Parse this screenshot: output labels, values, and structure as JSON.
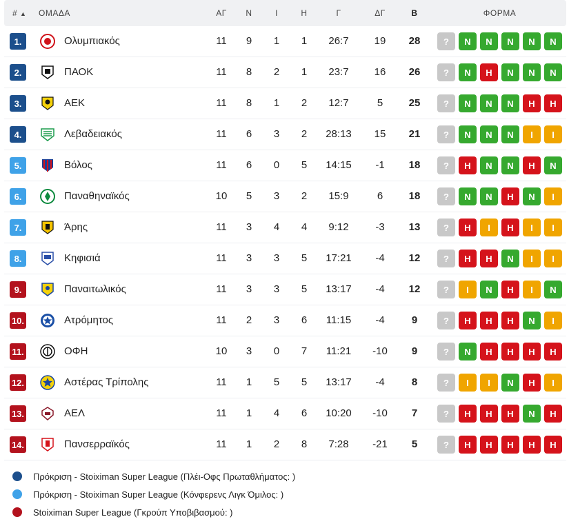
{
  "header": {
    "rank": "#",
    "sort_arrow": "▲",
    "team": "ΟΜΑΔΑ",
    "played": "ΑΓ",
    "wins": "Ν",
    "draws": "Ι",
    "losses": "Η",
    "goals": "Γ",
    "goal_diff": "ΔΓ",
    "points": "Β",
    "form": "ΦΟΡΜΑ"
  },
  "colors": {
    "champ": "#1c4f8c",
    "conf": "#3fa2e8",
    "releg": "#b3121d",
    "N": "#36a92f",
    "I": "#f0a500",
    "H": "#d5131b",
    "unknown": "#c8c8c8"
  },
  "rows": [
    {
      "rank": "1.",
      "zone": "champ",
      "team": "Ολυμπιακός",
      "logo": "olympiacos-logo-icon",
      "p": "11",
      "w": "9",
      "d": "1",
      "l": "1",
      "g": "26:7",
      "gd": "19",
      "pts": "28",
      "form": [
        "?",
        "Ν",
        "Ν",
        "Ν",
        "Ν",
        "Ν"
      ]
    },
    {
      "rank": "2.",
      "zone": "champ",
      "team": "ΠΑΟΚ",
      "logo": "paok-logo-icon",
      "p": "11",
      "w": "8",
      "d": "2",
      "l": "1",
      "g": "23:7",
      "gd": "16",
      "pts": "26",
      "form": [
        "?",
        "Ν",
        "Η",
        "Ν",
        "Ν",
        "Ν"
      ]
    },
    {
      "rank": "3.",
      "zone": "champ",
      "team": "ΑΕΚ",
      "logo": "aek-logo-icon",
      "p": "11",
      "w": "8",
      "d": "1",
      "l": "2",
      "g": "12:7",
      "gd": "5",
      "pts": "25",
      "form": [
        "?",
        "Ν",
        "Ν",
        "Ν",
        "Η",
        "Η"
      ]
    },
    {
      "rank": "4.",
      "zone": "champ",
      "team": "Λεβαδειακός",
      "logo": "levadiakos-logo-icon",
      "p": "11",
      "w": "6",
      "d": "3",
      "l": "2",
      "g": "28:13",
      "gd": "15",
      "pts": "21",
      "form": [
        "?",
        "Ν",
        "Ν",
        "Ν",
        "Ι",
        "Ι"
      ]
    },
    {
      "rank": "5.",
      "zone": "conf",
      "team": "Βόλος",
      "logo": "volos-logo-icon",
      "p": "11",
      "w": "6",
      "d": "0",
      "l": "5",
      "g": "14:15",
      "gd": "-1",
      "pts": "18",
      "form": [
        "?",
        "Η",
        "Ν",
        "Ν",
        "Η",
        "Ν"
      ]
    },
    {
      "rank": "6.",
      "zone": "conf",
      "team": "Παναθηναϊκός",
      "logo": "panathinaikos-logo-icon",
      "p": "10",
      "w": "5",
      "d": "3",
      "l": "2",
      "g": "15:9",
      "gd": "6",
      "pts": "18",
      "form": [
        "?",
        "Ν",
        "Ν",
        "Η",
        "Ν",
        "Ι"
      ]
    },
    {
      "rank": "7.",
      "zone": "conf",
      "team": "Άρης",
      "logo": "aris-logo-icon",
      "p": "11",
      "w": "3",
      "d": "4",
      "l": "4",
      "g": "9:12",
      "gd": "-3",
      "pts": "13",
      "form": [
        "?",
        "Η",
        "Ι",
        "Η",
        "Ι",
        "Ι"
      ]
    },
    {
      "rank": "8.",
      "zone": "conf",
      "team": "Κηφισιά",
      "logo": "kifisia-logo-icon",
      "p": "11",
      "w": "3",
      "d": "3",
      "l": "5",
      "g": "17:21",
      "gd": "-4",
      "pts": "12",
      "form": [
        "?",
        "Η",
        "Η",
        "Ν",
        "Ι",
        "Ι"
      ]
    },
    {
      "rank": "9.",
      "zone": "releg",
      "team": "Παναιτωλικός",
      "logo": "panetolikos-logo-icon",
      "p": "11",
      "w": "3",
      "d": "3",
      "l": "5",
      "g": "13:17",
      "gd": "-4",
      "pts": "12",
      "form": [
        "?",
        "Ι",
        "Ν",
        "Η",
        "Ι",
        "Ν"
      ]
    },
    {
      "rank": "10.",
      "zone": "releg",
      "team": "Ατρόμητος",
      "logo": "atromitos-logo-icon",
      "p": "11",
      "w": "2",
      "d": "3",
      "l": "6",
      "g": "11:15",
      "gd": "-4",
      "pts": "9",
      "form": [
        "?",
        "Η",
        "Η",
        "Η",
        "Ν",
        "Ι"
      ]
    },
    {
      "rank": "11.",
      "zone": "releg",
      "team": "ΟΦΗ",
      "logo": "ofi-logo-icon",
      "p": "10",
      "w": "3",
      "d": "0",
      "l": "7",
      "g": "11:21",
      "gd": "-10",
      "pts": "9",
      "form": [
        "?",
        "Ν",
        "Η",
        "Η",
        "Η",
        "Η"
      ]
    },
    {
      "rank": "12.",
      "zone": "releg",
      "team": "Αστέρας Τρίπολης",
      "logo": "asteras-logo-icon",
      "p": "11",
      "w": "1",
      "d": "5",
      "l": "5",
      "g": "13:17",
      "gd": "-4",
      "pts": "8",
      "form": [
        "?",
        "Ι",
        "Ι",
        "Ν",
        "Η",
        "Ι"
      ]
    },
    {
      "rank": "13.",
      "zone": "releg",
      "team": "ΑΕΛ",
      "logo": "ael-logo-icon",
      "p": "11",
      "w": "1",
      "d": "4",
      "l": "6",
      "g": "10:20",
      "gd": "-10",
      "pts": "7",
      "form": [
        "?",
        "Η",
        "Η",
        "Η",
        "Ν",
        "Η"
      ]
    },
    {
      "rank": "14.",
      "zone": "releg",
      "team": "Πανσερραϊκός",
      "logo": "panserraikos-logo-icon",
      "p": "11",
      "w": "1",
      "d": "2",
      "l": "8",
      "g": "7:28",
      "gd": "-21",
      "pts": "5",
      "form": [
        "?",
        "Η",
        "Η",
        "Η",
        "Η",
        "Η"
      ]
    }
  ],
  "legend": [
    {
      "zone": "champ",
      "label": "Πρόκριση - Stoiximan Super League (Πλέι-Οφς Πρωταθλήματος: )"
    },
    {
      "zone": "conf",
      "label": "Πρόκριση - Stoiximan Super League (Κόνφερενς Λιγκ Όμιλος: )"
    },
    {
      "zone": "releg",
      "label": "Stoiximan Super League (Γκρούπ Υποβιβασμού: )"
    }
  ]
}
